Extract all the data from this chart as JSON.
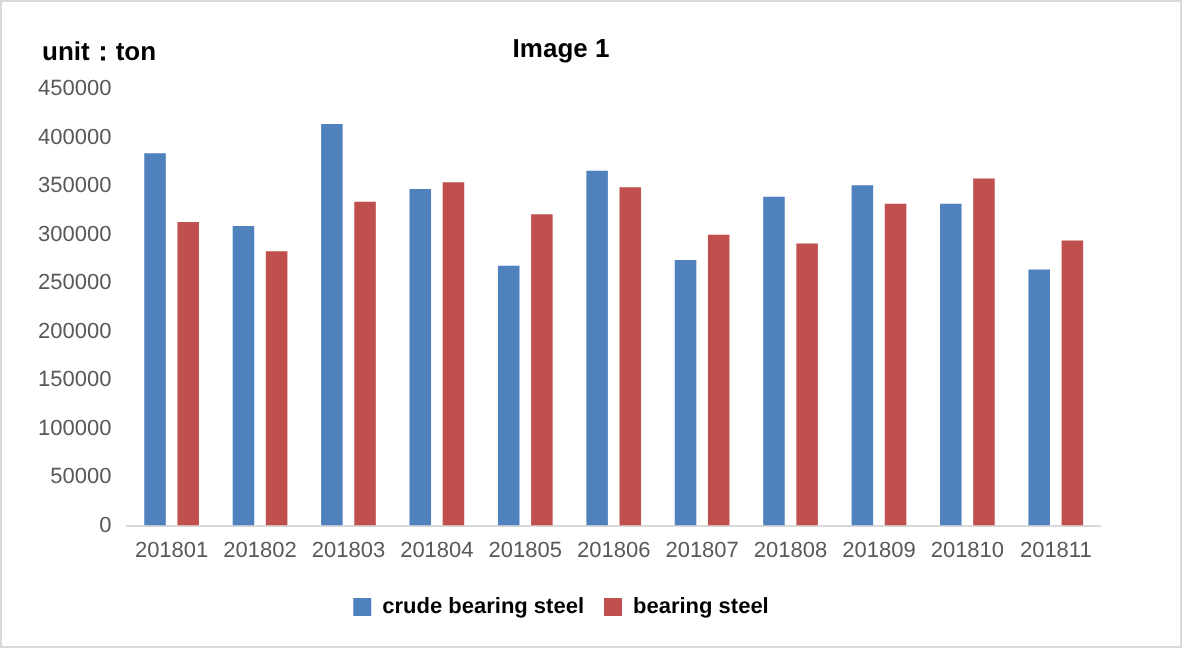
{
  "chart_data": {
    "type": "bar",
    "title": "Image 1",
    "annotations": [
      "unit：ton"
    ],
    "categories": [
      "201801",
      "201802",
      "201803",
      "201804",
      "201805",
      "201806",
      "201807",
      "201808",
      "201809",
      "201810",
      "201811"
    ],
    "series": [
      {
        "name": "crude bearing steel",
        "color": "#4f81bd",
        "values": [
          384000,
          309000,
          414000,
          347000,
          268000,
          366000,
          274000,
          339000,
          351000,
          332000,
          264000
        ]
      },
      {
        "name": "bearing steel",
        "color": "#c0504d",
        "values": [
          313000,
          283000,
          334000,
          354000,
          321000,
          349000,
          300000,
          291000,
          332000,
          358000,
          294000
        ]
      }
    ],
    "ylim": [
      0,
      450000
    ],
    "yticks": [
      0,
      50000,
      100000,
      150000,
      200000,
      250000,
      300000,
      350000,
      400000,
      450000
    ],
    "grid": false,
    "legend": "bottom"
  }
}
